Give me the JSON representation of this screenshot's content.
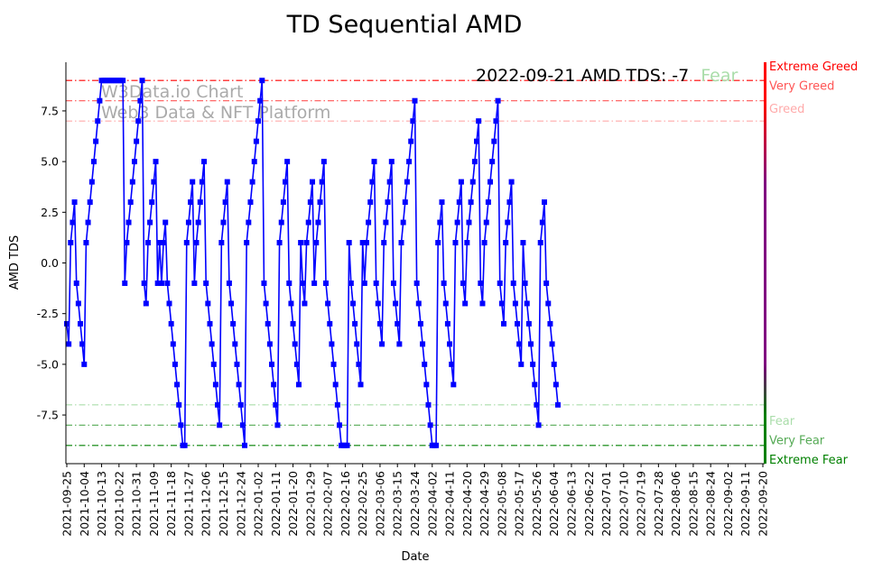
{
  "chart_data": {
    "type": "line",
    "title": "TD Sequential AMD",
    "xlabel": "Date",
    "ylabel": "AMD TDS",
    "ylim": [
      -9.9,
      9.9
    ],
    "yticks": [
      -7.5,
      -5.0,
      -2.5,
      0.0,
      2.5,
      5.0,
      7.5
    ],
    "grid": false,
    "annotation": "2022-09-21 AMD TDS: -7",
    "annotation_status": "Fear",
    "watermark": [
      "W3Data.io Chart",
      "Web3 Data & NFT Platform"
    ],
    "x_start": "2021-09-25",
    "x_end": "2022-09-21",
    "x_tick_labels": [
      "2021-09-25",
      "2021-10-04",
      "2021-10-13",
      "2021-10-22",
      "2021-10-31",
      "2021-11-09",
      "2021-11-18",
      "2021-11-27",
      "2021-12-06",
      "2021-12-15",
      "2021-12-24",
      "2022-01-02",
      "2022-01-11",
      "2022-01-20",
      "2022-01-29",
      "2022-02-07",
      "2022-02-16",
      "2022-02-25",
      "2022-03-06",
      "2022-03-15",
      "2022-03-24",
      "2022-04-02",
      "2022-04-11",
      "2022-04-20",
      "2022-04-29",
      "2022-05-08",
      "2022-05-17",
      "2022-05-26",
      "2022-06-04",
      "2022-06-13",
      "2022-06-22",
      "2022-07-01",
      "2022-07-10",
      "2022-07-19",
      "2022-07-28",
      "2022-08-06",
      "2022-08-15",
      "2022-08-24",
      "2022-09-02",
      "2022-09-11",
      "2022-09-20"
    ],
    "levels": [
      {
        "name": "Extreme Greed",
        "value": 9,
        "color": "#ff0000"
      },
      {
        "name": "Very Greed",
        "value": 8,
        "color": "#ff5555"
      },
      {
        "name": "Greed",
        "value": 7,
        "color": "#ffaaaa"
      },
      {
        "name": "Fear",
        "value": -7,
        "color": "#aaddaa"
      },
      {
        "name": "Very Fear",
        "value": -8,
        "color": "#55aa55"
      },
      {
        "name": "Extreme Fear",
        "value": -9,
        "color": "#008000"
      }
    ],
    "series": [
      {
        "color": "#0000ff",
        "values": [
          -3,
          -4,
          1,
          2,
          3,
          -1,
          -2,
          -3,
          -4,
          -5,
          1,
          2,
          3,
          4,
          5,
          6,
          7,
          8,
          9,
          9,
          9,
          9,
          9,
          9,
          9,
          9,
          9,
          9,
          9,
          9,
          -1,
          1,
          2,
          3,
          4,
          5,
          6,
          7,
          8,
          9,
          -1,
          -2,
          1,
          2,
          3,
          4,
          5,
          -1,
          1,
          -1,
          1,
          2,
          -1,
          -2,
          -3,
          -4,
          -5,
          -6,
          -7,
          -8,
          -9,
          -9,
          1,
          2,
          3,
          4,
          -1,
          1,
          2,
          3,
          4,
          5,
          -1,
          -2,
          -3,
          -4,
          -5,
          -6,
          -7,
          -8,
          1,
          2,
          3,
          4,
          -1,
          -2,
          -3,
          -4,
          -5,
          -6,
          -7,
          -8,
          -9,
          1,
          2,
          3,
          4,
          5,
          6,
          7,
          8,
          9,
          -1,
          -2,
          -3,
          -4,
          -5,
          -6,
          -7,
          -8,
          1,
          2,
          3,
          4,
          5,
          -1,
          -2,
          -3,
          -4,
          -5,
          -6,
          1,
          -1,
          -2,
          1,
          2,
          3,
          4,
          -1,
          1,
          2,
          3,
          4,
          5,
          -1,
          -2,
          -3,
          -4,
          -5,
          -6,
          -7,
          -8,
          -9,
          -9,
          -9,
          -9,
          1,
          -1,
          -2,
          -3,
          -4,
          -5,
          -6,
          1,
          -1,
          1,
          2,
          3,
          4,
          5,
          -1,
          -2,
          -3,
          -4,
          1,
          2,
          3,
          4,
          5,
          -1,
          -2,
          -3,
          -4,
          1,
          2,
          3,
          4,
          5,
          6,
          7,
          8,
          -1,
          -2,
          -3,
          -4,
          -5,
          -6,
          -7,
          -8,
          -9,
          -9,
          -9,
          1,
          2,
          3,
          -1,
          -2,
          -3,
          -4,
          -5,
          -6,
          1,
          2,
          3,
          4,
          -1,
          -2,
          1,
          2,
          3,
          4,
          5,
          6,
          7,
          -1,
          -2,
          1,
          2,
          3,
          4,
          5,
          6,
          7,
          8,
          -1,
          -2,
          -3,
          1,
          2,
          3,
          4,
          -1,
          -2,
          -3,
          -4,
          -5,
          1,
          -1,
          -2,
          -3,
          -4,
          -5,
          -6,
          -7,
          -8,
          1,
          2,
          3,
          -1,
          -2,
          -3,
          -4,
          -5,
          -6,
          -7
        ]
      }
    ]
  }
}
